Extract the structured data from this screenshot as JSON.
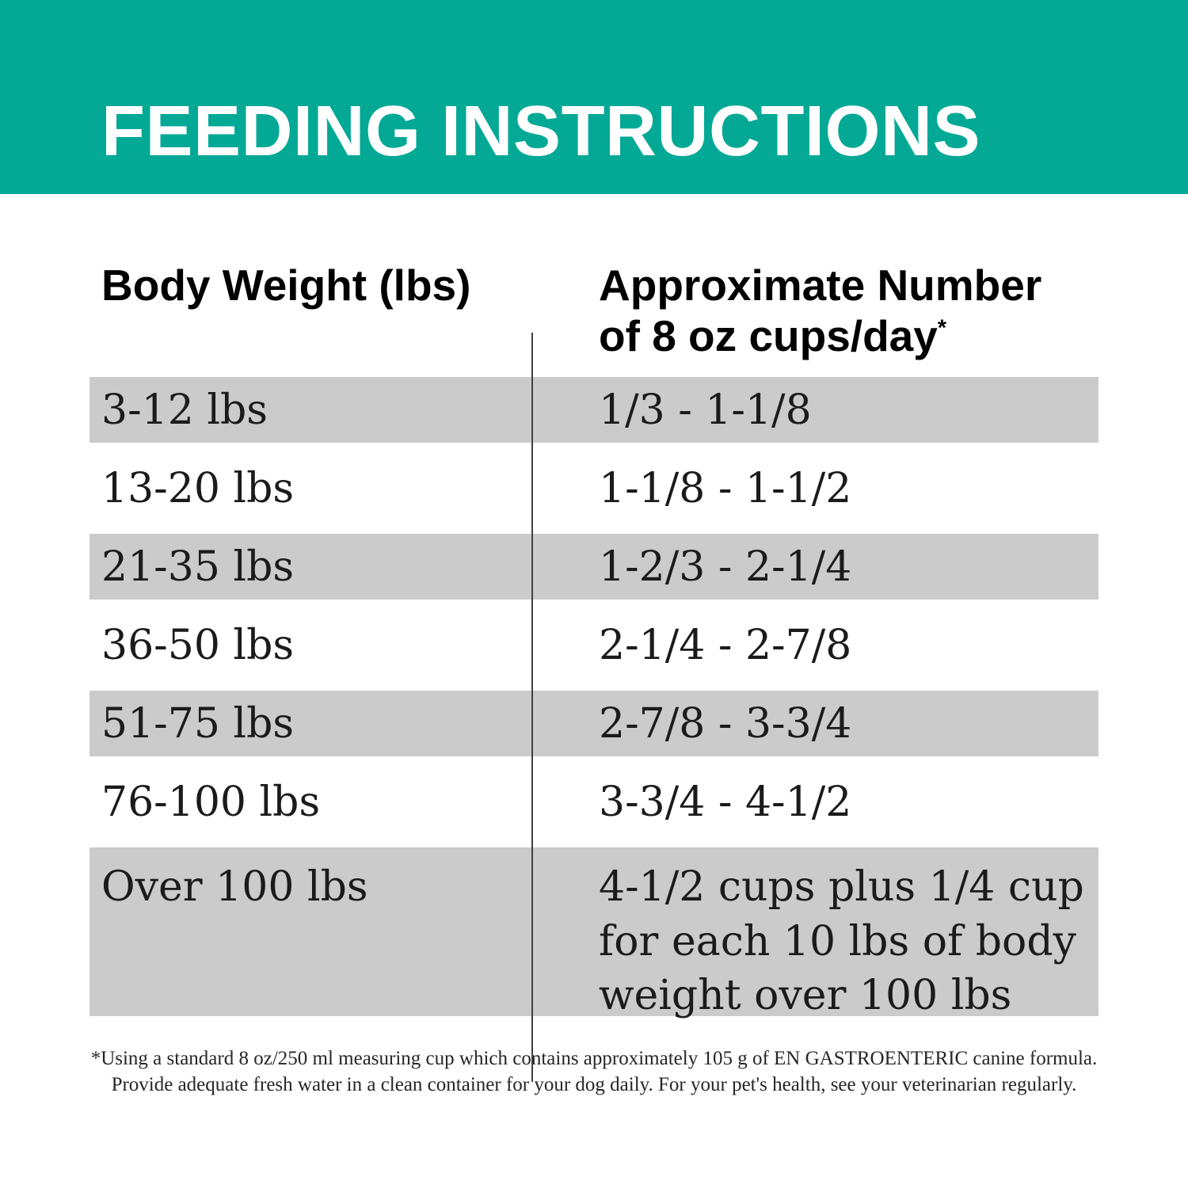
{
  "banner": {
    "title": "FEEDING INSTRUCTIONS"
  },
  "table": {
    "col1_header": "Body Weight (lbs)",
    "col2_header_line1": "Approximate Number",
    "col2_header_line2": "of 8 oz cups/day",
    "col2_header_note_marker": "*",
    "rows": [
      {
        "body_weight": "3-12 lbs",
        "cups_per_day": "1/3 - 1-1/8"
      },
      {
        "body_weight": "13-20 lbs",
        "cups_per_day": "1-1/8 - 1-1/2"
      },
      {
        "body_weight": "21-35 lbs",
        "cups_per_day": "1-2/3 - 2-1/4"
      },
      {
        "body_weight": "36-50 lbs",
        "cups_per_day": "2-1/4 - 2-7/8"
      },
      {
        "body_weight": "51-75 lbs",
        "cups_per_day": "2-7/8 - 3-3/4"
      },
      {
        "body_weight": "76-100 lbs",
        "cups_per_day": "3-3/4 - 4-1/2"
      },
      {
        "body_weight": "Over 100 lbs",
        "cups_per_day": "4-1/2 cups plus 1/4 cup for each 10 lbs of body weight over 100 lbs"
      }
    ]
  },
  "footnote": {
    "line1": "*Using a standard 8 oz/250 ml measuring cup which contains approximately 105 g of EN GASTROENTERIC canine formula.",
    "line2": "Provide adequate fresh water in a clean container for your dog daily. For your pet's health, see your veterinarian regularly."
  },
  "colors": {
    "banner_teal": "#04A996",
    "stripe_gray": "#CBCBCB",
    "divider": "#404040",
    "title_text": "#FFFFFF",
    "header_text": "#000000",
    "row_text": "#1B1B1B"
  }
}
